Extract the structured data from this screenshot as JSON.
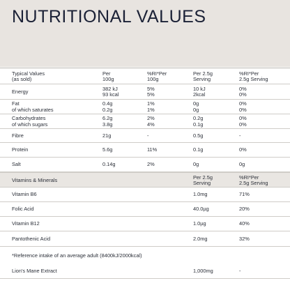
{
  "title": "NUTRITIONAL VALUES",
  "header": [
    "Typical Values\n(as sold)",
    "Per\n100g",
    "%RI*Per\n100g",
    "Per 2.5g\nServing",
    "%RI*Per\n2.5g Serving"
  ],
  "rows": [
    [
      "Energy",
      "382 kJ\n93 kcal",
      "5%\n5%",
      "10 kJ\n2kcal",
      "0%\n0%"
    ],
    [
      "Fat\nof which saturates",
      "0.4g\n0.2g",
      "1%\n1%",
      "0g\n0g",
      "0%\n0%"
    ],
    [
      "Carbohydrates\nof which sugars",
      "6.2g\n3.8g",
      "2%\n4%",
      "0.2g\n0.1g",
      "0%\n0%"
    ],
    [
      "Fibre",
      "21g",
      "-",
      "0.5g",
      "-"
    ],
    [
      "Protein",
      "5.6g",
      "11%",
      "0.1g",
      "0%"
    ],
    [
      "Salt",
      "0.14g",
      "2%",
      "0g",
      "0g"
    ]
  ],
  "vitamins_header": [
    "Vitamins & Minerals",
    "",
    "",
    "Per 2.5g\nServing",
    "%RI*Per\n2.5g Serving"
  ],
  "vitamins": [
    [
      "Vitamin B6",
      "",
      "",
      "1.0mg",
      "71%"
    ],
    [
      "Folic Acid",
      "",
      "",
      "40.0µg",
      "20%"
    ],
    [
      "Vitamin B12",
      "",
      "",
      "1.0µg",
      "40%"
    ],
    [
      "Pantothenic Acid",
      "",
      "",
      "2.0mg",
      "32%"
    ]
  ],
  "footnote": "*Reference intake of an average adult (8400kJ/2000kcal)",
  "extract": [
    "Lion's Mane Extract",
    "",
    "",
    "1,000mg",
    "-"
  ]
}
